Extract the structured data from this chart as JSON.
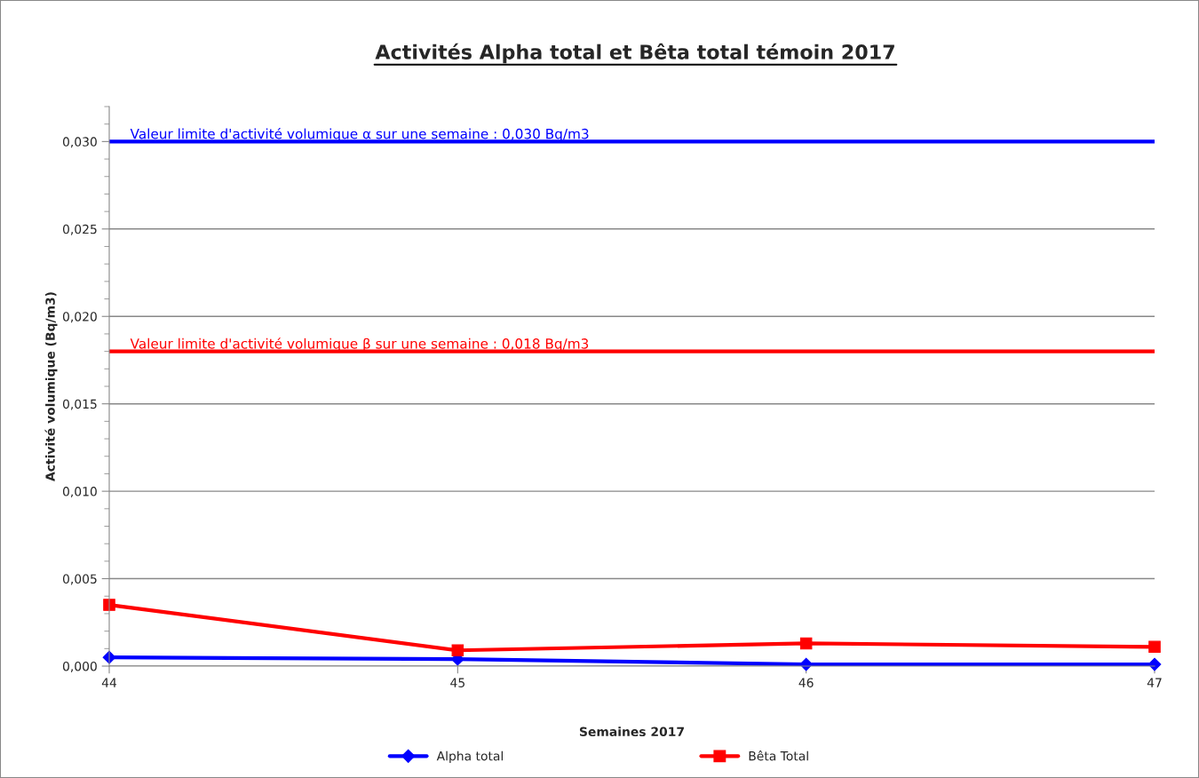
{
  "chart_data": {
    "type": "line",
    "title": "Activités Alpha total et Bêta total témoin 2017",
    "xlabel": "Semaines 2017",
    "ylabel": "Activité volumique (Bq/m3)",
    "x": [
      44,
      45,
      46,
      47
    ],
    "series": [
      {
        "name": "Alpha total",
        "color": "#0000ff",
        "marker": "diamond",
        "values": [
          0.0005,
          0.0004,
          0.0001,
          0.0001
        ]
      },
      {
        "name": "Bêta Total",
        "color": "#ff0000",
        "marker": "square",
        "values": [
          0.0035,
          0.0009,
          0.0013,
          0.0011
        ]
      }
    ],
    "ref_lines": [
      {
        "axis": "y",
        "value": 0.03,
        "label": "Valeur limite d'activité volumique α sur une semaine : 0,030 Bq/m3",
        "color": "#0000ff"
      },
      {
        "axis": "y",
        "value": 0.018,
        "label": "Valeur limite d'activité volumique β sur une semaine : 0,018 Bq/m3",
        "color": "#ff0000"
      }
    ],
    "xlim": [
      44,
      47
    ],
    "xticks": [
      44,
      45,
      46,
      47
    ],
    "ylim": [
      0,
      0.032
    ],
    "yticks": [
      {
        "value": 0,
        "label": "0,000"
      },
      {
        "value": 0.005,
        "label": "0,005"
      },
      {
        "value": 0.01,
        "label": "0,010"
      },
      {
        "value": 0.015,
        "label": "0,015"
      },
      {
        "value": 0.02,
        "label": "0,020"
      },
      {
        "value": 0.025,
        "label": "0,025"
      },
      {
        "value": 0.03,
        "label": "0,030"
      }
    ],
    "grid": "y",
    "legend": "bottom",
    "line_style": "solid"
  }
}
